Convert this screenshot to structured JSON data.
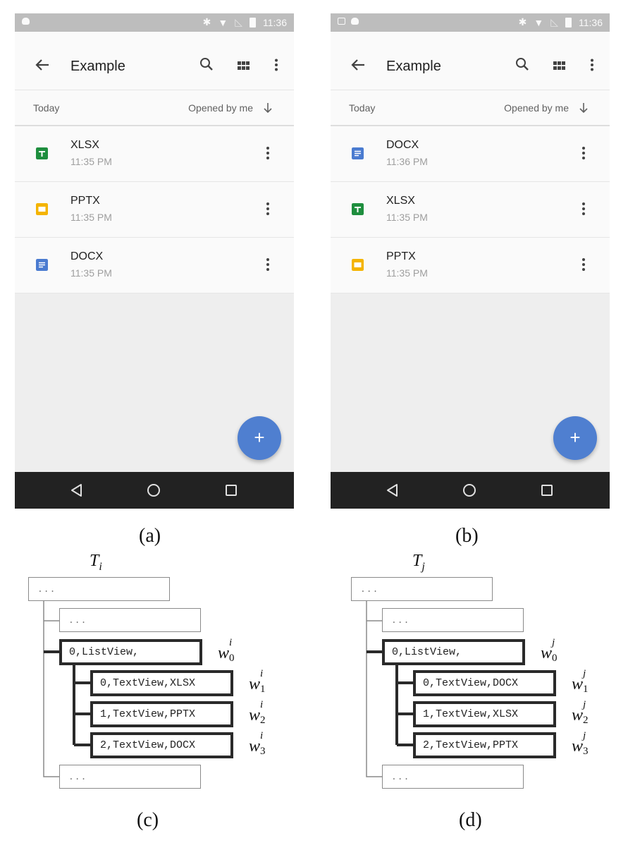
{
  "screens": [
    {
      "caption": "(a)",
      "status_time": "11:36",
      "title": "Example",
      "sort_section": "Today",
      "sort_by": "Opened by me",
      "files": [
        {
          "name": "XLSX",
          "time": "11:35 PM",
          "type": "sheets",
          "color": "#1e8e3e"
        },
        {
          "name": "PPTX",
          "time": "11:35 PM",
          "type": "slides",
          "color": "#f4b400"
        },
        {
          "name": "DOCX",
          "time": "11:35 PM",
          "type": "docs",
          "color": "#4a7bd0"
        }
      ],
      "fab": "+"
    },
    {
      "caption": "(b)",
      "status_time": "11:36",
      "title": "Example",
      "sort_section": "Today",
      "sort_by": "Opened by me",
      "files": [
        {
          "name": "DOCX",
          "time": "11:36 PM",
          "type": "docs",
          "color": "#4a7bd0"
        },
        {
          "name": "XLSX",
          "time": "11:35 PM",
          "type": "sheets",
          "color": "#1e8e3e"
        },
        {
          "name": "PPTX",
          "time": "11:35 PM",
          "type": "slides",
          "color": "#f4b400"
        }
      ],
      "fab": "+"
    }
  ],
  "trees": [
    {
      "caption": "(c)",
      "title": "T",
      "title_sub": "i",
      "nodes": {
        "root": "...",
        "sibling_top": "...",
        "list": "0,ListView,",
        "children": [
          "0,TextView,XLSX",
          "1,TextView,PPTX",
          "2,TextView,DOCX"
        ],
        "sibling_bottom": "..."
      },
      "weights": [
        {
          "base": "w",
          "sup": "i",
          "sub": "0"
        },
        {
          "base": "w",
          "sup": "i",
          "sub": "1"
        },
        {
          "base": "w",
          "sup": "i",
          "sub": "2"
        },
        {
          "base": "w",
          "sup": "i",
          "sub": "3"
        }
      ]
    },
    {
      "caption": "(d)",
      "title": "T",
      "title_sub": "j",
      "nodes": {
        "root": "...",
        "sibling_top": "...",
        "list": "0,ListView,",
        "children": [
          "0,TextView,DOCX",
          "1,TextView,XLSX",
          "2,TextView,PPTX"
        ],
        "sibling_bottom": "..."
      },
      "weights": [
        {
          "base": "w",
          "sup": "j",
          "sub": "0"
        },
        {
          "base": "w",
          "sup": "j",
          "sub": "1"
        },
        {
          "base": "w",
          "sup": "j",
          "sub": "2"
        },
        {
          "base": "w",
          "sup": "j",
          "sub": "3"
        }
      ]
    }
  ]
}
